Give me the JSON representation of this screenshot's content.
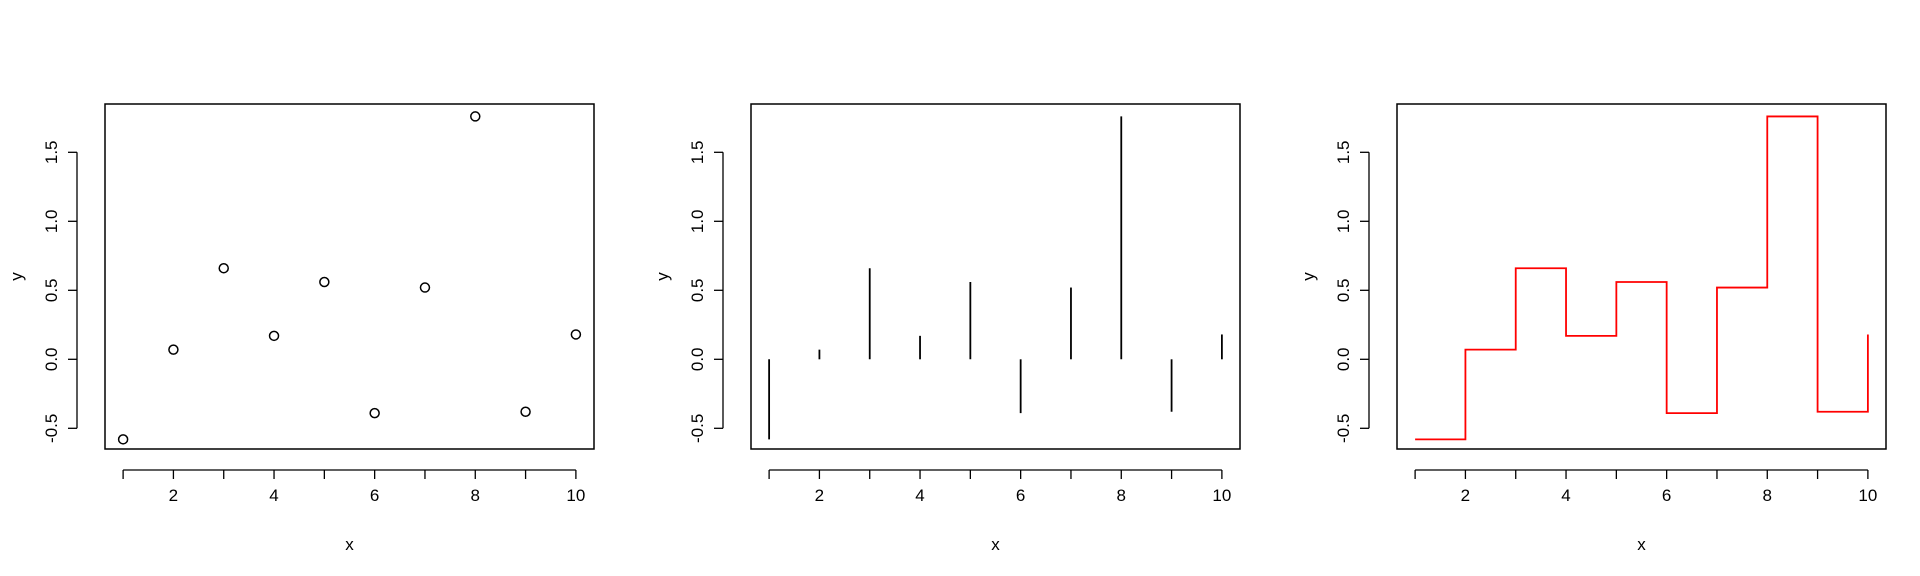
{
  "chart_data": [
    {
      "type": "scatter",
      "title": "",
      "xlabel": "x",
      "ylabel": "y",
      "xlim": [
        0.64,
        10.36
      ],
      "ylim": [
        -0.65,
        1.85
      ],
      "xticks": [
        2,
        4,
        6,
        8,
        10
      ],
      "yticks": [
        -0.5,
        0.0,
        0.5,
        1.0,
        1.5
      ],
      "ytick_labels": [
        "-0.5",
        "0.0",
        "0.5",
        "1.0",
        "1.5"
      ],
      "grid": false,
      "color": "#000000",
      "x": [
        1,
        2,
        3,
        4,
        5,
        6,
        7,
        8,
        9,
        10
      ],
      "y": [
        -0.58,
        0.07,
        0.66,
        0.17,
        0.56,
        -0.39,
        0.52,
        1.76,
        -0.38,
        0.18
      ]
    },
    {
      "type": "histogram-lines",
      "title": "",
      "xlabel": "x",
      "ylabel": "y",
      "xlim": [
        0.64,
        10.36
      ],
      "ylim": [
        -0.65,
        1.85
      ],
      "xticks": [
        2,
        4,
        6,
        8,
        10
      ],
      "yticks": [
        -0.5,
        0.0,
        0.5,
        1.0,
        1.5
      ],
      "ytick_labels": [
        "-0.5",
        "0.0",
        "0.5",
        "1.0",
        "1.5"
      ],
      "grid": false,
      "color": "#000000",
      "x": [
        1,
        2,
        3,
        4,
        5,
        6,
        7,
        8,
        9,
        10
      ],
      "y": [
        -0.58,
        0.07,
        0.66,
        0.17,
        0.56,
        -0.39,
        0.52,
        1.76,
        -0.38,
        0.18
      ]
    },
    {
      "type": "step",
      "title": "",
      "xlabel": "x",
      "ylabel": "y",
      "xlim": [
        0.64,
        10.36
      ],
      "ylim": [
        -0.65,
        1.85
      ],
      "xticks": [
        2,
        4,
        6,
        8,
        10
      ],
      "yticks": [
        -0.5,
        0.0,
        0.5,
        1.0,
        1.5
      ],
      "ytick_labels": [
        "-0.5",
        "0.0",
        "0.5",
        "1.0",
        "1.5"
      ],
      "grid": false,
      "color": "#ff0000",
      "x": [
        1,
        2,
        3,
        4,
        5,
        6,
        7,
        8,
        9,
        10
      ],
      "y": [
        -0.58,
        0.07,
        0.66,
        0.17,
        0.56,
        -0.39,
        0.52,
        1.76,
        -0.38,
        0.18
      ]
    }
  ]
}
